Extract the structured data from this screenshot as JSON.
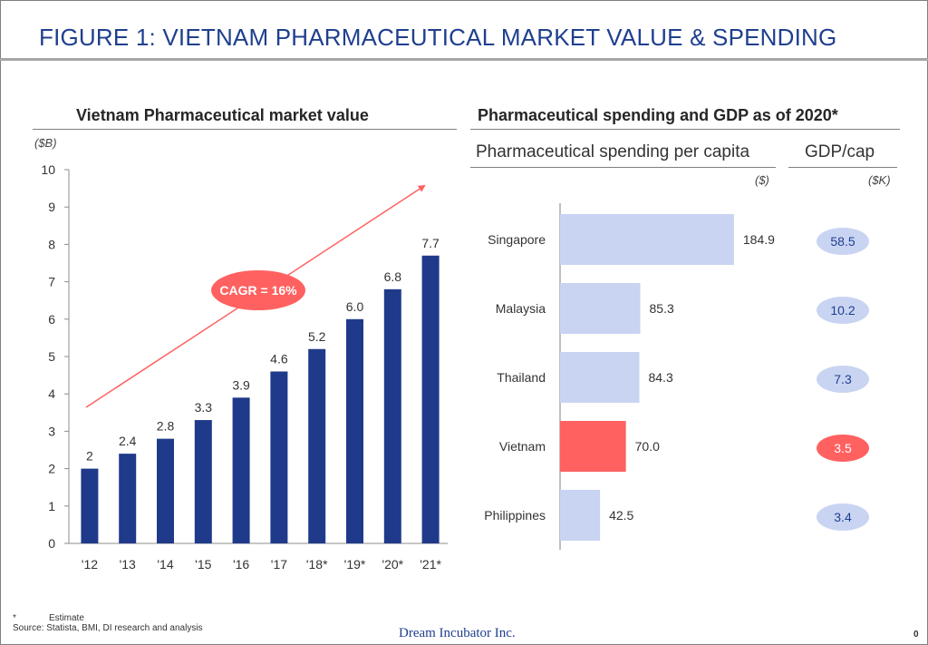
{
  "page_title": "FIGURE 1: VIETNAM PHARMACEUTICAL MARKET VALUE & SPENDING",
  "left_panel": {
    "title": "Vietnam Pharmaceutical market value",
    "unit": "($B)",
    "cagr_label": "CAGR = 16%"
  },
  "right_panel": {
    "title": "Pharmaceutical spending and GDP as of 2020*",
    "spending_header": "Pharmaceutical spending per capita",
    "spending_unit": "($)",
    "gdp_header": "GDP/cap",
    "gdp_unit": "($K)"
  },
  "footnote": {
    "marker": "*",
    "marker_text": "Estimate",
    "source_label": "Source:",
    "source_text": "Statista, BMI, DI research and analysis"
  },
  "company": "Dream Incubator Inc.",
  "page_number": "0",
  "colors": {
    "title": "#1f3f8f",
    "bar_dark": "#1f3a8a",
    "bar_light": "#c9d4f2",
    "highlight": "#ff6161",
    "gdp_bubble": "#c9d4f2",
    "gdp_text": "#1f3f8f",
    "arrow": "#ff6161"
  },
  "chart_data": [
    {
      "type": "bar",
      "title": "Vietnam Pharmaceutical market value",
      "ylabel": "($B)",
      "categories": [
        "'12",
        "'13",
        "'14",
        "'15",
        "'16",
        "'17",
        "'18*",
        "'19*",
        "'20*",
        "'21*"
      ],
      "values": [
        2,
        2.4,
        2.8,
        3.3,
        3.9,
        4.6,
        5.2,
        6.0,
        6.8,
        7.7
      ],
      "value_labels": [
        "2",
        "2.4",
        "2.8",
        "3.3",
        "3.9",
        "4.6",
        "5.2",
        "6.0",
        "6.8",
        "7.7"
      ],
      "ylim": [
        0,
        10
      ],
      "yticks": [
        0,
        1,
        2,
        3,
        4,
        5,
        6,
        7,
        8,
        9,
        10
      ],
      "annotation": "CAGR = 16%"
    },
    {
      "type": "bar",
      "orientation": "horizontal",
      "title": "Pharmaceutical spending and GDP as of 2020*",
      "categories": [
        "Singapore",
        "Malaysia",
        "Thailand",
        "Vietnam",
        "Philippines"
      ],
      "values": [
        184.9,
        85.3,
        84.3,
        70.0,
        42.5
      ],
      "value_labels": [
        "184.9",
        "85.3",
        "84.3",
        "70.0",
        "42.5"
      ],
      "gdp_per_capita": [
        58.5,
        10.2,
        7.3,
        3.5,
        3.4
      ],
      "gdp_labels": [
        "58.5",
        "10.2",
        "7.3",
        "3.5",
        "3.4"
      ],
      "highlight": "Vietnam"
    }
  ]
}
